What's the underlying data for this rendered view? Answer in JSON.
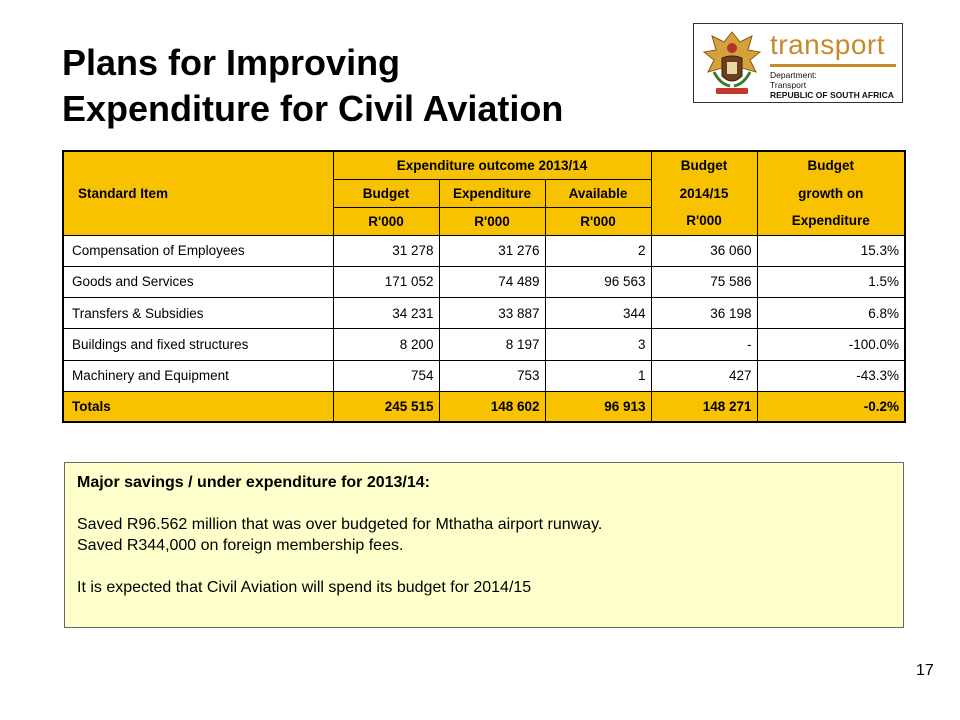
{
  "title": {
    "line1": "Plans for Improving",
    "line2": "Expenditure for Civil Aviation"
  },
  "logo": {
    "brand": "transport",
    "line1": "Department:",
    "line2": "Transport",
    "line3": "REPUBLIC OF SOUTH AFRICA"
  },
  "colors": {
    "header_fill": "#f9c200",
    "notes_fill": "#ffffcc",
    "brand": "#c9892a"
  },
  "table": {
    "header": {
      "standard_item": "Standard Item",
      "expenditure_outcome": "Expenditure outcome 2013/14",
      "budget": "Budget",
      "expenditure": "Expenditure",
      "available": "Available",
      "budget_col_top": "Budget",
      "budget_col_mid": "2014/15",
      "growth_top": "Budget",
      "growth_mid": "growth on",
      "growth_bot": "Expenditure",
      "unit1": "R'000",
      "unit2": "R'000",
      "unit3": "R'000",
      "unit4": "R'000"
    },
    "rows": [
      {
        "item": "Compensation of Employees",
        "budget": "31 278",
        "expenditure": "31 276",
        "available": "2",
        "budget_2014": "36 060",
        "growth": "15.3%"
      },
      {
        "item": "Goods and Services",
        "budget": "171 052",
        "expenditure": "74 489",
        "available": "96 563",
        "budget_2014": "75 586",
        "growth": "1.5%"
      },
      {
        "item": "Transfers & Subsidies",
        "budget": "34 231",
        "expenditure": "33 887",
        "available": "344",
        "budget_2014": "36 198",
        "growth": "6.8%"
      },
      {
        "item": "Buildings and fixed structures",
        "budget": "8 200",
        "expenditure": "8 197",
        "available": "3",
        "budget_2014": "-",
        "growth": "-100.0%"
      },
      {
        "item": "Machinery and Equipment",
        "budget": "754",
        "expenditure": "753",
        "available": "1",
        "budget_2014": "427",
        "growth": "-43.3%"
      }
    ],
    "totals": {
      "item": "Totals",
      "budget": "245 515",
      "expenditure": "148 602",
      "available": "96 913",
      "budget_2014": "148 271",
      "growth": "-0.2%"
    }
  },
  "notes": {
    "heading": "Major savings / under expenditure for 2013/14:",
    "line1": "Saved R96.562 million that was over budgeted for Mthatha airport runway.",
    "line2": "Saved R344,000 on foreign membership fees.",
    "line3": "It is expected that Civil Aviation will spend its budget for 2014/15"
  },
  "page_number": "17"
}
